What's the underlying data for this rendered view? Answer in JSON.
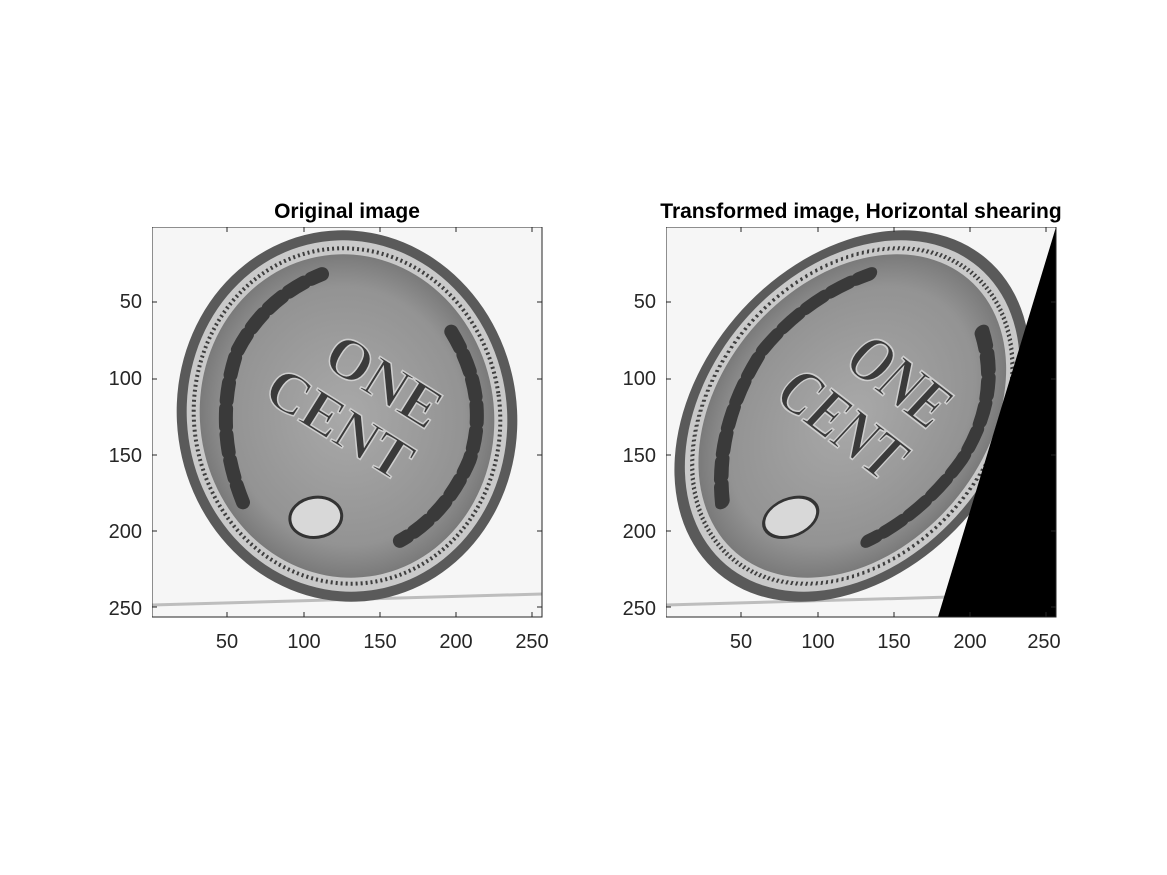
{
  "figure": {
    "panels": [
      {
        "title": "Original image",
        "xticks": [
          "50",
          "100",
          "150",
          "200",
          "250"
        ],
        "yticks": [
          "50",
          "100",
          "150",
          "200",
          "250"
        ],
        "coin": {
          "line1": "ONE",
          "line2": "CENT"
        }
      },
      {
        "title": "Transformed image, Horizontal shearing",
        "xticks": [
          "50",
          "100",
          "150",
          "200",
          "250"
        ],
        "yticks": [
          "50",
          "100",
          "150",
          "200",
          "250"
        ],
        "coin": {
          "line1": "ONE",
          "line2": "CENT"
        }
      }
    ],
    "axis_range": {
      "x": [
        0.5,
        256.5
      ],
      "y": [
        0.5,
        256.5
      ],
      "y_direction": "reversed"
    }
  }
}
